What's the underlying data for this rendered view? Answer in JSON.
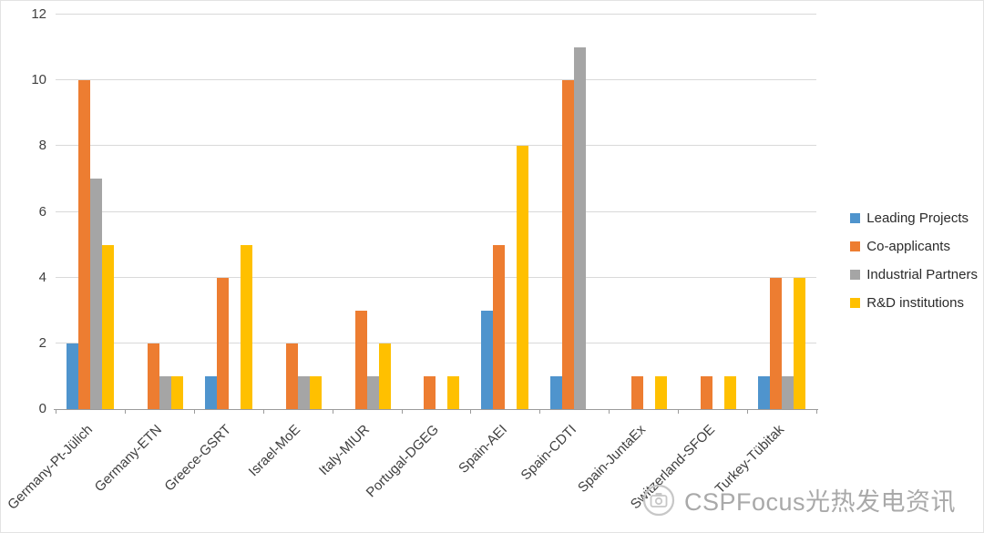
{
  "chart_data": {
    "type": "bar",
    "title": "",
    "xlabel": "",
    "ylabel": "",
    "ylim": [
      0,
      12
    ],
    "ytick_step": 2,
    "grid": true,
    "legend_position": "right",
    "categories": [
      "Germany-Pt-Jülich",
      "Germany-ETN",
      "Greece-GSRT",
      "Israel-MoE",
      "Italy-MIUR",
      "Portugal-DGEG",
      "Spain-AEI",
      "Spain-CDTI",
      "Spain-JuntaEx",
      "Switzerland-SFOE",
      "Turkey-Tübitak"
    ],
    "series": [
      {
        "name": "Leading Projects",
        "color": "#4f94cd",
        "values": [
          2,
          0,
          1,
          0,
          0,
          0,
          3,
          1,
          0,
          0,
          1
        ]
      },
      {
        "name": "Co-applicants",
        "color": "#ed7d31",
        "values": [
          10,
          2,
          4,
          2,
          3,
          1,
          5,
          10,
          1,
          1,
          4
        ]
      },
      {
        "name": "Industrial Partners",
        "color": "#a5a5a5",
        "values": [
          7,
          1,
          0,
          1,
          1,
          0,
          0,
          11,
          0,
          0,
          1
        ]
      },
      {
        "name": "R&D institutions",
        "color": "#ffc000",
        "values": [
          5,
          1,
          5,
          1,
          2,
          1,
          8,
          0,
          1,
          1,
          4
        ]
      }
    ]
  },
  "colors": {
    "gridline": "#d9d9d9",
    "axis": "#9b9b9b",
    "tick_label": "#3f3f3f"
  },
  "watermark": {
    "text": "CSPFocus光热发电资讯"
  }
}
